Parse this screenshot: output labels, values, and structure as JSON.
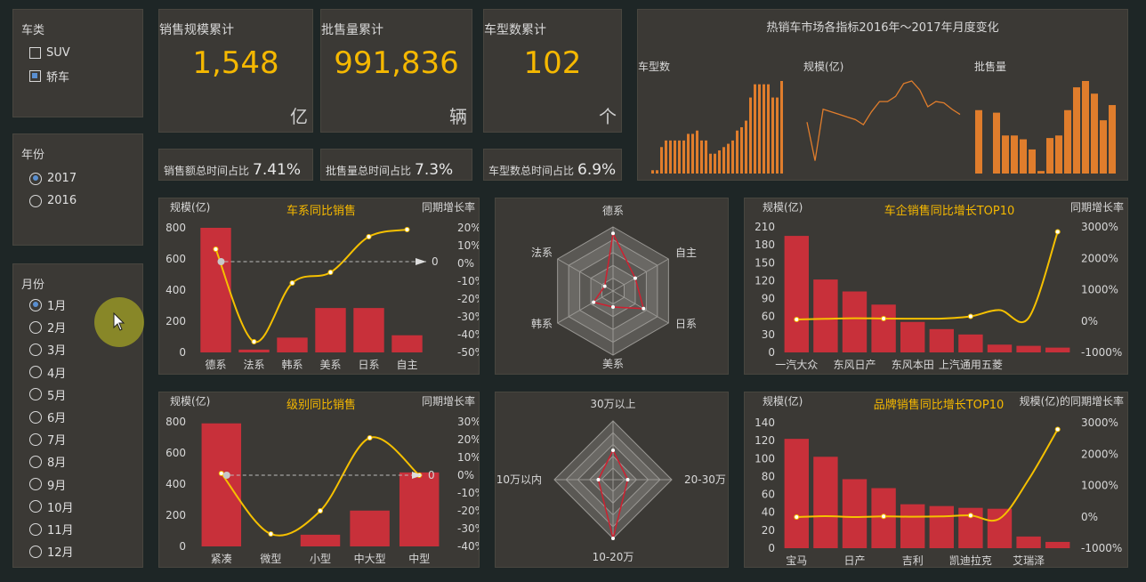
{
  "filters": {
    "car_type": {
      "title": "车类",
      "options": [
        {
          "label": "SUV",
          "checked": false
        },
        {
          "label": "轿车",
          "checked": true
        }
      ]
    },
    "year": {
      "title": "年份",
      "options": [
        {
          "label": "2017",
          "checked": true
        },
        {
          "label": "2016",
          "checked": false
        }
      ]
    },
    "month": {
      "title": "月份",
      "options": [
        {
          "label": "1月",
          "checked": true
        },
        {
          "label": "2月",
          "checked": false
        },
        {
          "label": "3月",
          "checked": false
        },
        {
          "label": "4月",
          "checked": false
        },
        {
          "label": "5月",
          "checked": false
        },
        {
          "label": "6月",
          "checked": false
        },
        {
          "label": "7月",
          "checked": false
        },
        {
          "label": "8月",
          "checked": false
        },
        {
          "label": "9月",
          "checked": false
        },
        {
          "label": "10月",
          "checked": false
        },
        {
          "label": "11月",
          "checked": false
        },
        {
          "label": "12月",
          "checked": false
        }
      ]
    }
  },
  "kpis": [
    {
      "label": "销售规模累计",
      "value": "1,548",
      "unit": "亿"
    },
    {
      "label": "批售量累计",
      "value": "991,836",
      "unit": "辆"
    },
    {
      "label": "车型数累计",
      "value": "102",
      "unit": "个"
    }
  ],
  "ratios": [
    {
      "label": "销售额总时间占比",
      "value": "7.41%"
    },
    {
      "label": "批售量总时间占比",
      "value": "7.3%"
    },
    {
      "label": "车型数总时间占比",
      "value": "6.9%"
    }
  ],
  "colors": {
    "bar": "#e07d2c",
    "red": "#c8303a",
    "line": "#f5c000",
    "accent": "#f5b800",
    "radar": "#d02030"
  },
  "chart_data": [
    {
      "id": "monthly",
      "type": "bar",
      "title": "热销车市场各指标2016年～2017年月度变化",
      "subplots": [
        {
          "label": "车型数",
          "type": "bar",
          "values": [
            1,
            1,
            8,
            10,
            10,
            10,
            10,
            10,
            12,
            12,
            13,
            10,
            10,
            6,
            6,
            7,
            8,
            9,
            10,
            13,
            14,
            16,
            23,
            27,
            27,
            27,
            27,
            23,
            23,
            28
          ]
        },
        {
          "label": "规模(亿)",
          "type": "line",
          "values": [
            40,
            10,
            50,
            48,
            46,
            44,
            42,
            38,
            48,
            56,
            56,
            60,
            70,
            72,
            65,
            52,
            56,
            55,
            50,
            46
          ]
        },
        {
          "label": "批售量",
          "type": "bar",
          "values": [
            50,
            0,
            48,
            30,
            30,
            27,
            19,
            2,
            28,
            30,
            50,
            68,
            73,
            63,
            42,
            54
          ]
        }
      ]
    },
    {
      "id": "series",
      "type": "bar",
      "title": "车系同比销售",
      "ylabel": "规模(亿)",
      "y2label": "同期增长率",
      "categories": [
        "德系",
        "法系",
        "韩系",
        "美系",
        "日系",
        "自主"
      ],
      "values": [
        800,
        18,
        95,
        285,
        285,
        110
      ],
      "growth": [
        7,
        -45,
        -12,
        -6,
        14,
        18
      ],
      "ylim": [
        0,
        800
      ],
      "y2ticks": [
        "20%",
        "10%",
        "0%",
        "-10%",
        "-20%",
        "-30%",
        "-40%",
        "-50%"
      ],
      "yticks": [
        "800",
        "600",
        "400",
        "200",
        "0"
      ],
      "ref_label": "0"
    },
    {
      "id": "radar-series",
      "type": "radar",
      "categories": [
        "德系",
        "自主",
        "日系",
        "美系",
        "韩系",
        "法系"
      ],
      "values": [
        0.9,
        0.4,
        0.55,
        0.25,
        0.35,
        0.15
      ]
    },
    {
      "id": "enterprise",
      "type": "bar",
      "title": "车企销售同比增长TOP10",
      "ylabel": "规模(亿)",
      "y2label": "同期增长率",
      "categories": [
        "一汽大众",
        "",
        "东风日产",
        "",
        "东风本田",
        "",
        "上汽通用五菱",
        "",
        "",
        ""
      ],
      "tick_labels": [
        "一汽大众",
        "东风日产",
        "东风本田",
        "上汽通用五菱"
      ],
      "values": [
        195,
        122,
        102,
        80,
        51,
        39,
        30,
        13,
        11,
        8
      ],
      "growth": [
        0,
        20,
        40,
        30,
        25,
        30,
        100,
        300,
        50,
        2800
      ],
      "ylim": [
        0,
        210
      ],
      "yticks": [
        "210",
        "180",
        "150",
        "120",
        "90",
        "60",
        "30",
        "0"
      ],
      "y2ticks": [
        "3000%",
        "2000%",
        "1000%",
        "0%",
        "-1000%"
      ]
    },
    {
      "id": "grade",
      "type": "bar",
      "title": "级别同比销售",
      "ylabel": "规模(亿)",
      "y2label": "同期增长率",
      "categories": [
        "紧凑",
        "微型",
        "小型",
        "中大型",
        "中型"
      ],
      "values": [
        790,
        0,
        75,
        230,
        475
      ],
      "growth": [
        1,
        -33,
        -20,
        21,
        0
      ],
      "ylim": [
        0,
        800
      ],
      "yticks": [
        "800",
        "600",
        "400",
        "200",
        "0"
      ],
      "y2ticks": [
        "30%",
        "20%",
        "10%",
        "0%",
        "-10%",
        "-20%",
        "-30%",
        "-40%"
      ],
      "ref_label": "0"
    },
    {
      "id": "radar-price",
      "type": "radar",
      "categories": [
        "30万以上",
        "20-30万",
        "10-20万",
        "10万以内"
      ],
      "values": [
        0.5,
        0.25,
        1.0,
        0.25
      ]
    },
    {
      "id": "brand",
      "type": "bar",
      "title": "品牌销售同比增长TOP10",
      "ylabel": "规模(亿)",
      "y2label": "规模(亿)的同期增长率",
      "categories": [
        "宝马",
        "",
        "日产",
        "",
        "吉利",
        "",
        "凯迪拉克",
        "",
        "艾瑞泽",
        ""
      ],
      "tick_labels": [
        "宝马",
        "日产",
        "吉利",
        "凯迪拉克",
        "艾瑞泽"
      ],
      "values": [
        122,
        102,
        77,
        67,
        49,
        47,
        45,
        44,
        13,
        7
      ],
      "growth": [
        0,
        30,
        0,
        20,
        10,
        20,
        50,
        -50,
        1200,
        2800
      ],
      "ylim": [
        0,
        140
      ],
      "yticks": [
        "140",
        "120",
        "100",
        "80",
        "60",
        "40",
        "20",
        "0"
      ],
      "y2ticks": [
        "3000%",
        "2000%",
        "1000%",
        "0%",
        "-1000%"
      ]
    }
  ]
}
